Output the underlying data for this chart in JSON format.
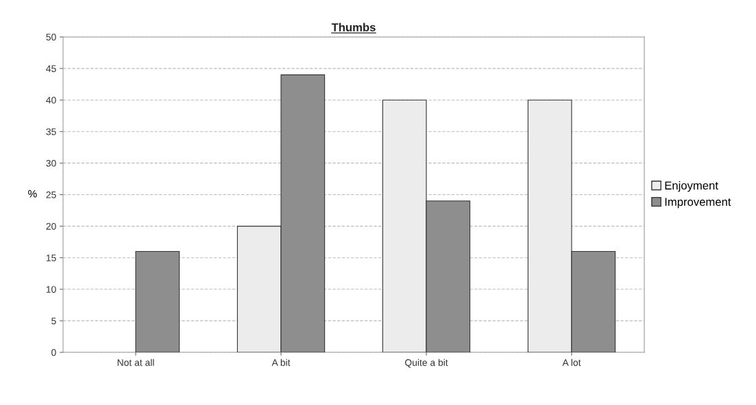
{
  "chart_data": {
    "type": "bar",
    "title": "Thumbs",
    "ylabel": "%",
    "categories": [
      "Not at all",
      "A bit",
      "Quite a bit",
      "A lot"
    ],
    "series": [
      {
        "name": "Enjoyment",
        "color": "#ececec",
        "values": [
          0,
          20,
          40,
          40
        ]
      },
      {
        "name": "Improvement",
        "color": "#8e8e8e",
        "values": [
          16,
          44,
          24,
          16
        ]
      }
    ],
    "ylim": [
      0,
      50
    ],
    "yticks": [
      0,
      5,
      10,
      15,
      20,
      25,
      30,
      35,
      40,
      45,
      50
    ],
    "grid": "y",
    "legend": "right"
  }
}
